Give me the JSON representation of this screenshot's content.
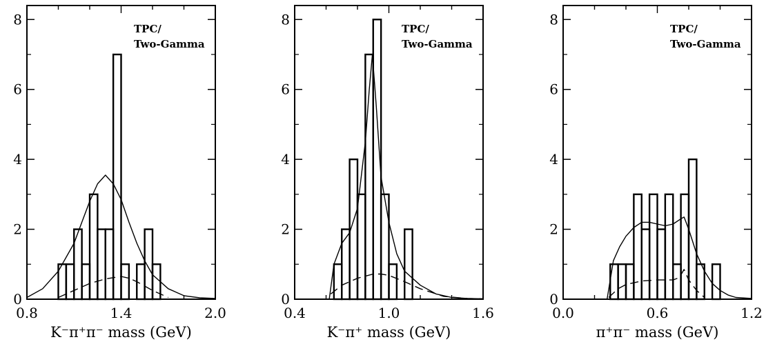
{
  "chart_data": [
    {
      "type": "histogram",
      "panel_id": "kpipi",
      "xlabel": "K⁻π⁺π⁻ mass (GeV)",
      "annotation": [
        "TPC/",
        "Two-Gamma"
      ],
      "xlim": [
        0.8,
        2.0
      ],
      "ylim": [
        0,
        8.4
      ],
      "xticks": [
        0.8,
        1.4,
        2.0
      ],
      "yticks": [
        0,
        2,
        4,
        6,
        8
      ],
      "bin_width": 0.05,
      "histogram": {
        "bin_edges": [
          1.0,
          1.05,
          1.1,
          1.15,
          1.2,
          1.25,
          1.3,
          1.35,
          1.4,
          1.45,
          1.5,
          1.55,
          1.6,
          1.65
        ],
        "counts": [
          1,
          1,
          2,
          1,
          3,
          2,
          2,
          7,
          1,
          0,
          1,
          2,
          1
        ]
      },
      "curves": [
        {
          "style": "solid",
          "x": [
            0.8,
            0.9,
            1.0,
            1.05,
            1.1,
            1.15,
            1.2,
            1.25,
            1.3,
            1.35,
            1.4,
            1.45,
            1.5,
            1.55,
            1.6,
            1.7,
            1.8,
            1.9,
            2.0
          ],
          "y": [
            0.05,
            0.3,
            0.8,
            1.2,
            1.6,
            2.2,
            2.8,
            3.3,
            3.55,
            3.3,
            2.85,
            2.2,
            1.6,
            1.1,
            0.7,
            0.3,
            0.1,
            0.04,
            0.02
          ]
        },
        {
          "style": "dashed",
          "x": [
            1.0,
            1.1,
            1.2,
            1.3,
            1.4,
            1.45,
            1.5,
            1.6,
            1.7
          ],
          "y": [
            0.05,
            0.25,
            0.45,
            0.58,
            0.65,
            0.6,
            0.5,
            0.25,
            0.05
          ]
        }
      ]
    },
    {
      "type": "histogram",
      "panel_id": "kpi",
      "xlabel": "K⁻π⁺ mass (GeV)",
      "annotation": [
        "TPC/",
        "Two-Gamma"
      ],
      "xlim": [
        0.4,
        1.6
      ],
      "ylim": [
        0,
        8.4
      ],
      "xticks": [
        0.4,
        1.0,
        1.6
      ],
      "yticks": [
        0,
        2,
        4,
        6,
        8
      ],
      "bin_width": 0.05,
      "histogram": {
        "bin_edges": [
          0.65,
          0.7,
          0.75,
          0.8,
          0.85,
          0.9,
          0.95,
          1.0,
          1.05,
          1.1,
          1.15
        ],
        "counts": [
          1,
          2,
          4,
          3,
          7,
          8,
          3,
          1,
          0,
          2
        ]
      },
      "curves": [
        {
          "style": "solid",
          "x": [
            0.62,
            0.65,
            0.7,
            0.75,
            0.8,
            0.85,
            0.875,
            0.895,
            0.92,
            0.95,
            1.0,
            1.05,
            1.1,
            1.2,
            1.3,
            1.4,
            1.5,
            1.6
          ],
          "y": [
            0.0,
            1.0,
            1.6,
            1.9,
            2.6,
            4.5,
            6.0,
            7.0,
            5.5,
            3.5,
            2.2,
            1.3,
            0.8,
            0.4,
            0.15,
            0.05,
            0.02,
            0.01
          ]
        },
        {
          "style": "dashed",
          "x": [
            0.63,
            0.7,
            0.8,
            0.9,
            0.95,
            1.0,
            1.1,
            1.2,
            1.35,
            1.5,
            1.6
          ],
          "y": [
            0.15,
            0.4,
            0.6,
            0.72,
            0.72,
            0.68,
            0.5,
            0.3,
            0.08,
            0.02,
            0.01
          ]
        }
      ]
    },
    {
      "type": "histogram",
      "panel_id": "pipi",
      "xlabel": "π⁺π⁻ mass (GeV)",
      "annotation": [
        "TPC/",
        "Two-Gamma"
      ],
      "xlim": [
        0.0,
        1.2
      ],
      "ylim": [
        0,
        8.4
      ],
      "xticks": [
        0.0,
        0.6,
        1.2
      ],
      "yticks": [
        0,
        2,
        4,
        6,
        8
      ],
      "bin_width": 0.05,
      "histogram": {
        "bin_edges": [
          0.3,
          0.35,
          0.4,
          0.45,
          0.5,
          0.55,
          0.6,
          0.65,
          0.7,
          0.75,
          0.8,
          0.85,
          0.9,
          0.95,
          1.0
        ],
        "counts": [
          1,
          1,
          1,
          3,
          2,
          3,
          2,
          3,
          1,
          3,
          4,
          1,
          0,
          1
        ]
      },
      "curves": [
        {
          "style": "solid",
          "x": [
            0.28,
            0.32,
            0.36,
            0.4,
            0.45,
            0.5,
            0.55,
            0.6,
            0.65,
            0.7,
            0.75,
            0.77,
            0.8,
            0.85,
            0.9,
            0.95,
            1.0,
            1.05,
            1.1,
            1.2
          ],
          "y": [
            0.0,
            1.1,
            1.5,
            1.8,
            2.05,
            2.2,
            2.2,
            2.15,
            2.1,
            2.15,
            2.3,
            2.35,
            2.0,
            1.3,
            0.8,
            0.45,
            0.25,
            0.12,
            0.05,
            0.02
          ]
        },
        {
          "style": "dashed",
          "x": [
            0.29,
            0.35,
            0.4,
            0.5,
            0.6,
            0.7,
            0.74,
            0.77,
            0.8,
            0.85,
            0.9
          ],
          "y": [
            0.05,
            0.3,
            0.42,
            0.52,
            0.55,
            0.55,
            0.62,
            0.85,
            0.55,
            0.25,
            0.05
          ]
        }
      ]
    }
  ]
}
